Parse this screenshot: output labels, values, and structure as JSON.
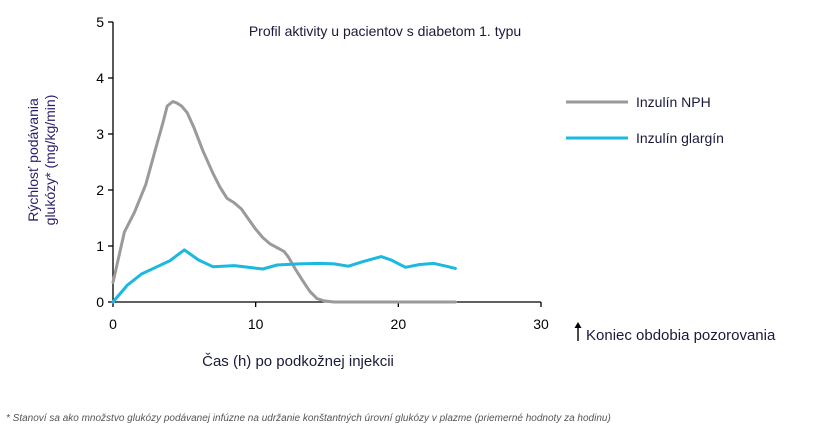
{
  "chart_data": {
    "type": "line",
    "title": "Profil aktivity u pacientov s diabetom 1. typu",
    "xlabel": "Čas (h) po podkožnej injekcii",
    "ylabel_line1": "Rýchlosť podávania",
    "ylabel_line2": "glukózy* (mg/kg/min)",
    "xlim": [
      0,
      30
    ],
    "ylim": [
      0,
      5
    ],
    "x_ticks": [
      0,
      10,
      20,
      30
    ],
    "y_ticks": [
      0,
      1,
      2,
      3,
      4,
      5
    ],
    "grid": false,
    "legend_position": "right",
    "series": [
      {
        "name": "Inzulín NPH",
        "color": "#9a9a9a",
        "x": [
          0,
          0.8,
          1.5,
          2.3,
          3.0,
          3.5,
          3.8,
          4.2,
          4.5,
          4.8,
          5.2,
          5.7,
          6.3,
          7.0,
          7.5,
          8.0,
          8.5,
          9.0,
          9.5,
          10.0,
          10.5,
          11.0,
          11.5,
          12.0,
          12.3,
          12.8,
          13.3,
          13.8,
          14.3,
          14.8,
          15.5,
          16.0,
          24.0
        ],
        "y": [
          0.35,
          1.25,
          1.6,
          2.1,
          2.75,
          3.2,
          3.5,
          3.58,
          3.55,
          3.5,
          3.38,
          3.1,
          2.7,
          2.3,
          2.05,
          1.85,
          1.77,
          1.66,
          1.48,
          1.3,
          1.15,
          1.04,
          0.97,
          0.9,
          0.8,
          0.58,
          0.38,
          0.19,
          0.06,
          0.02,
          0.0,
          0.0,
          0.0
        ]
      },
      {
        "name": "Inzulín glargín",
        "color": "#1bb8e0",
        "x": [
          0,
          1.0,
          2.0,
          3.0,
          4.0,
          5.0,
          6.0,
          7.0,
          8.5,
          10.5,
          11.5,
          13.0,
          14.5,
          15.5,
          16.5,
          17.5,
          18.8,
          19.5,
          20.5,
          21.5,
          22.5,
          23.5,
          24.0
        ],
        "y": [
          0.0,
          0.3,
          0.5,
          0.62,
          0.74,
          0.93,
          0.75,
          0.63,
          0.65,
          0.59,
          0.66,
          0.68,
          0.69,
          0.68,
          0.64,
          0.72,
          0.81,
          0.75,
          0.62,
          0.67,
          0.69,
          0.63,
          0.6
        ]
      }
    ],
    "annotation": "Koniec obdobia pozorovania",
    "footnote": "* Stanoví sa ako množstvo glukózy podávanej infúzne na udržanie konštantných úrovní glukózy v plazme (priemerné hodnoty za hodinu)"
  }
}
